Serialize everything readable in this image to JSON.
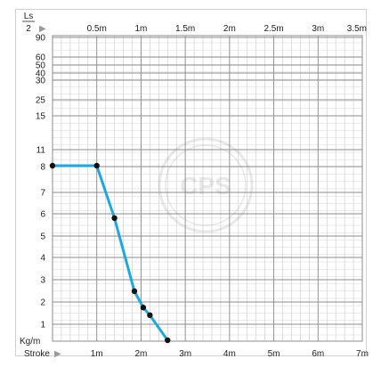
{
  "chart_data": {
    "type": "line",
    "top_axis": {
      "label_numerator": "Ls",
      "label_denominator": "2",
      "label_arrow": "▶",
      "ticks": [
        {
          "value": 0.5,
          "label": "0.5m"
        },
        {
          "value": 1,
          "label": "1m"
        },
        {
          "value": 1.5,
          "label": "1.5m"
        },
        {
          "value": 2,
          "label": "2m"
        },
        {
          "value": 2.5,
          "label": "2.5m"
        },
        {
          "value": 3,
          "label": "3m"
        },
        {
          "value": 3.5,
          "label": "3.5m"
        }
      ]
    },
    "x_axis": {
      "label": "Stroke",
      "label_arrow": "▶",
      "range": [
        0,
        7
      ],
      "ticks": [
        {
          "value": 1,
          "label": "1m"
        },
        {
          "value": 2,
          "label": "2m"
        },
        {
          "value": 3,
          "label": "3m"
        },
        {
          "value": 4,
          "label": "4m"
        },
        {
          "value": 5,
          "label": "5m"
        },
        {
          "value": 6,
          "label": "6m"
        },
        {
          "value": 7,
          "label": "7m"
        }
      ]
    },
    "y_axis": {
      "label": "Kg/m",
      "ticks": [
        "1",
        "2",
        "3",
        "4",
        "5",
        "6",
        "7",
        "8",
        "11",
        "15",
        "25",
        "30",
        "40",
        "50",
        "60",
        "90"
      ]
    },
    "grid": true,
    "series": [
      {
        "color": "#1ea8df",
        "points": [
          {
            "x": 0,
            "y": 8
          },
          {
            "x": 1,
            "y": 8
          },
          {
            "x": 1.4,
            "y": 5.6
          },
          {
            "x": 1.85,
            "y": 2.25
          },
          {
            "x": 2.05,
            "y": 1.5
          },
          {
            "x": 2.2,
            "y": 1.15
          },
          {
            "x": 2.6,
            "y": 0
          }
        ]
      }
    ],
    "watermark": "CPS"
  }
}
